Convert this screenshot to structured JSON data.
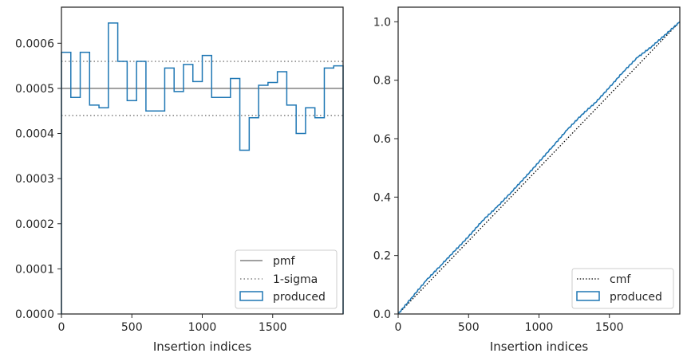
{
  "chart_data": [
    {
      "type": "histogram-step",
      "xlabel": "Insertion indices",
      "ylabel": "",
      "xlim": [
        0,
        2000
      ],
      "ylim": [
        0,
        0.00068
      ],
      "xticks": [
        "0",
        "500",
        "1000",
        "1500"
      ],
      "yticks": [
        "0.0000",
        "0.0001",
        "0.0002",
        "0.0003",
        "0.0004",
        "0.0005",
        "0.0006"
      ],
      "legend_position": "lower right",
      "legend": [
        "pmf",
        "1-sigma",
        "produced"
      ],
      "pmf": 0.0005,
      "sigma_band": [
        0.00044,
        0.00056
      ],
      "series": [
        {
          "name": "produced",
          "color": "#1f77b4",
          "bin_width": 66.67,
          "values": [
            0.00058,
            0.00048,
            0.00058,
            0.000463,
            0.000457,
            0.000645,
            0.00056,
            0.000473,
            0.00056,
            0.00045,
            0.00045,
            0.000545,
            0.000493,
            0.000553,
            0.000515,
            0.000573,
            0.00048,
            0.00048,
            0.000522,
            0.000363,
            0.000435,
            0.000507,
            0.000513,
            0.000537,
            0.000463,
            0.0004,
            0.000457,
            0.000435,
            0.000545,
            0.00055
          ]
        }
      ]
    },
    {
      "type": "line",
      "xlabel": "Insertion indices",
      "ylabel": "",
      "xlim": [
        0,
        2000
      ],
      "ylim": [
        0,
        1.05
      ],
      "xticks": [
        "0",
        "500",
        "1000",
        "1500"
      ],
      "yticks": [
        "0.0",
        "0.2",
        "0.4",
        "0.6",
        "0.8",
        "1.0"
      ],
      "legend_position": "lower right",
      "legend": [
        "cmf",
        "produced"
      ],
      "series": [
        {
          "name": "cmf",
          "color": "#000000",
          "x": [
            0,
            2000
          ],
          "y": [
            0,
            1.0
          ]
        },
        {
          "name": "produced",
          "color": "#1f77b4",
          "x": [
            0,
            100,
            200,
            300,
            400,
            500,
            600,
            700,
            800,
            900,
            1000,
            1100,
            1200,
            1300,
            1400,
            1500,
            1600,
            1700,
            1800,
            1900,
            2000
          ],
          "y": [
            0,
            0.058,
            0.115,
            0.165,
            0.215,
            0.265,
            0.32,
            0.365,
            0.415,
            0.467,
            0.52,
            0.575,
            0.63,
            0.68,
            0.723,
            0.775,
            0.83,
            0.878,
            0.915,
            0.957,
            1.0
          ]
        }
      ]
    }
  ]
}
